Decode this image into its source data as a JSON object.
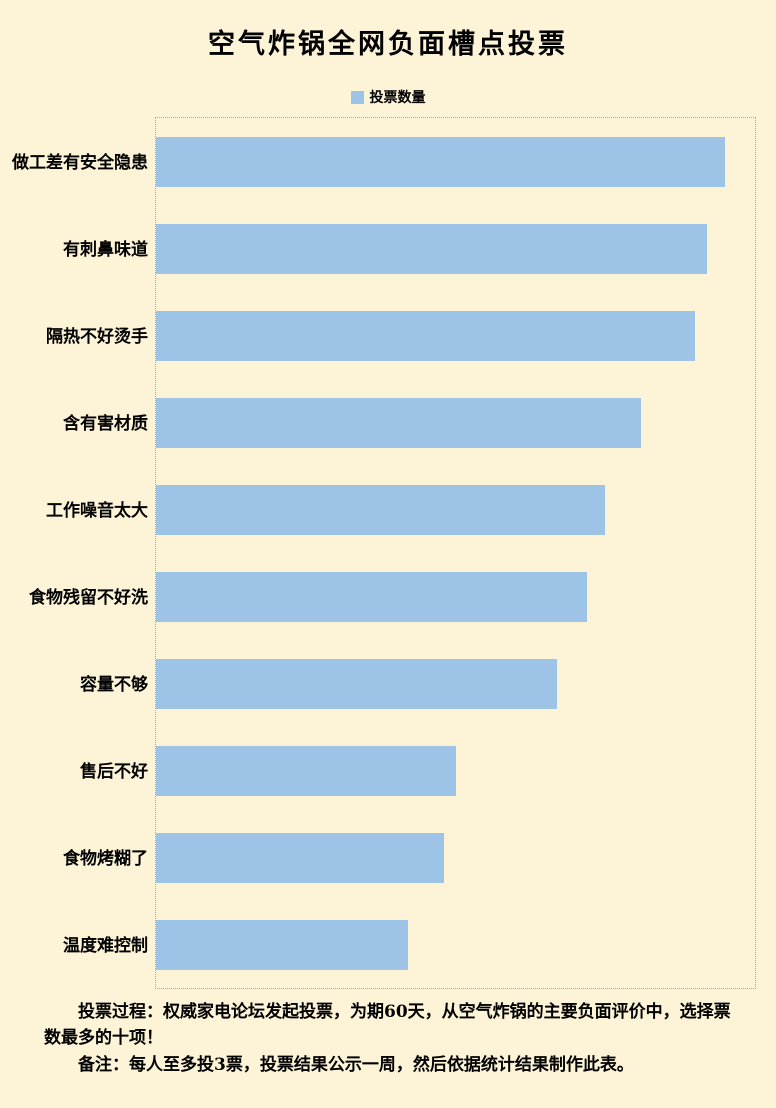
{
  "chart": {
    "title": "空气炸锅全网负面槽点投票",
    "legend_label": "投票数量"
  },
  "notes": {
    "process": "投票过程：权威家电论坛发起投票，为期60天，从空气炸锅的主要负面评价中，选择票数最多的十项！",
    "remark": "备注：每人至多投3票，投票结果公示一周，然后依据统计结果制作此表。"
  },
  "chart_data": {
    "type": "bar",
    "orientation": "horizontal",
    "title": "空气炸锅全网负面槽点投票",
    "legend": [
      "投票数量"
    ],
    "legend_position": "top-center",
    "categories": [
      "做工差有安全隐患",
      "有刺鼻味道",
      "隔热不好烫手",
      "含有害材质",
      "工作噪音太大",
      "食物残留不好洗",
      "容量不够",
      "售后不好",
      "食物烤糊了",
      "温度难控制"
    ],
    "values": [
      95,
      92,
      90,
      81,
      75,
      72,
      67,
      50,
      48,
      42
    ],
    "xlim": [
      0,
      100
    ],
    "xlabel": "",
    "ylabel": "",
    "grid": false,
    "bar_color": "#9dc3e6",
    "background_color": "#fdf3d6",
    "plot_border": "dotted"
  }
}
